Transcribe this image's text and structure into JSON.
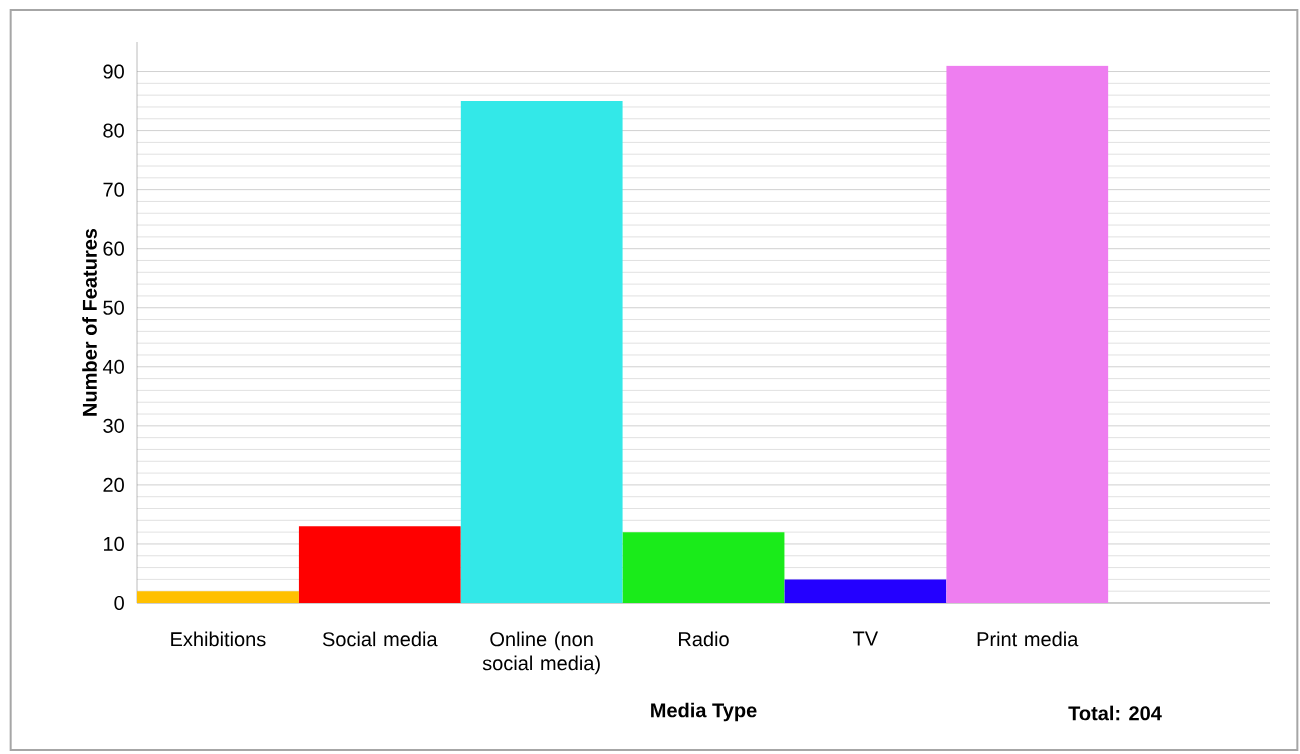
{
  "chart_data": {
    "type": "bar",
    "xlabel": "Media Type",
    "ylabel": "Number of Features",
    "categories": [
      "Exhibitions",
      "Social media",
      "Online (non social media)",
      "Radio",
      "TV",
      "Print media",
      null
    ],
    "values": [
      2,
      13,
      85,
      12,
      4,
      91,
      null
    ],
    "colors": [
      "#ffc000",
      "#ff0000",
      "#33e8e8",
      "#1aeb1a",
      "#2400ff",
      "#ee7ef0",
      "#ffffff"
    ],
    "ylim": [
      0,
      95
    ],
    "yticks": [
      0,
      10,
      20,
      30,
      40,
      50,
      60,
      70,
      80,
      90
    ],
    "grid": "y",
    "annotations": [
      "Total: 204"
    ]
  }
}
